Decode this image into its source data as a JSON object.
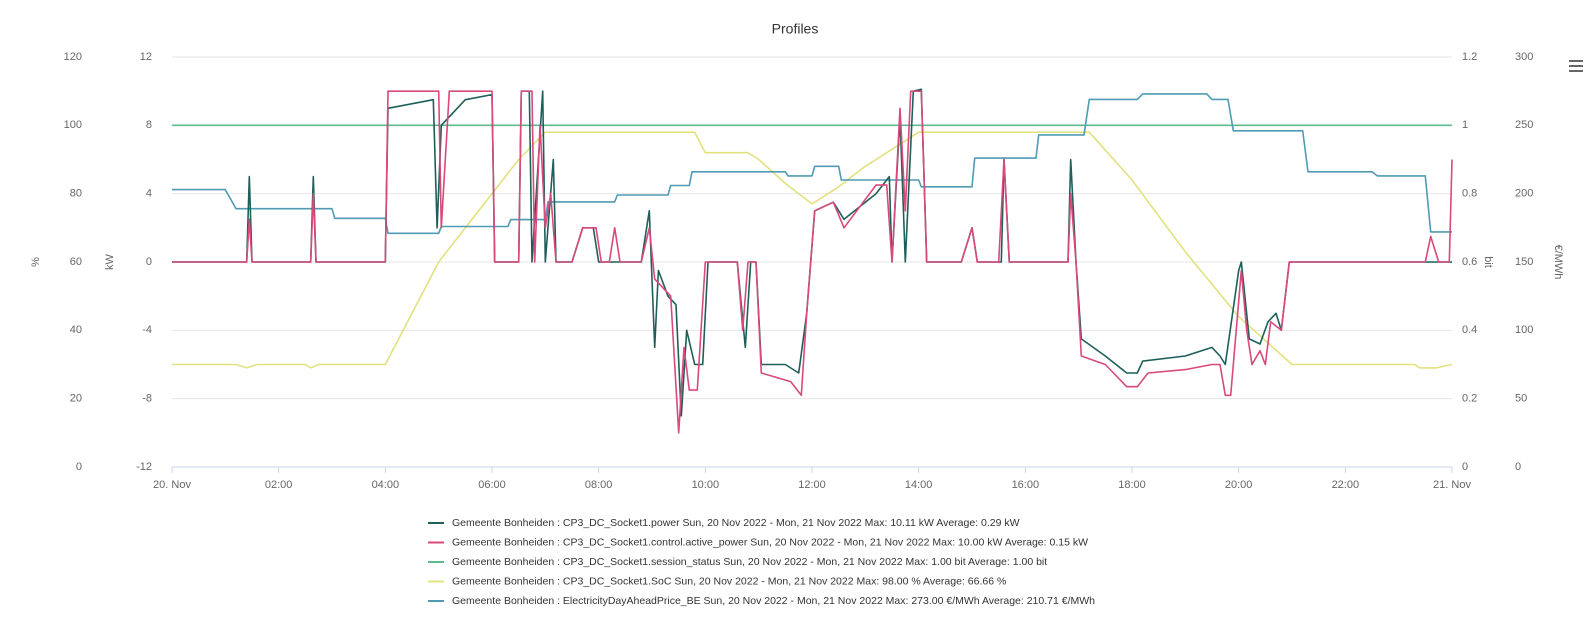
{
  "chart_data": {
    "type": "line",
    "title": "Profiles",
    "xlim": [
      0,
      24
    ],
    "xticks": [
      {
        "value": 0,
        "label": "20. Nov"
      },
      {
        "value": 2,
        "label": "02:00"
      },
      {
        "value": 4,
        "label": "04:00"
      },
      {
        "value": 6,
        "label": "06:00"
      },
      {
        "value": 8,
        "label": "08:00"
      },
      {
        "value": 10,
        "label": "10:00"
      },
      {
        "value": 12,
        "label": "12:00"
      },
      {
        "value": 14,
        "label": "14:00"
      },
      {
        "value": 16,
        "label": "16:00"
      },
      {
        "value": 18,
        "label": "18:00"
      },
      {
        "value": 20,
        "label": "20:00"
      },
      {
        "value": 22,
        "label": "22:00"
      },
      {
        "value": 24,
        "label": "21. Nov"
      }
    ],
    "y_axes": [
      {
        "title": "%",
        "side": "left",
        "lim": [
          0,
          120
        ],
        "ticks": [
          0,
          20,
          40,
          60,
          80,
          100,
          120
        ]
      },
      {
        "title": "kW",
        "side": "left",
        "lim": [
          -12,
          12
        ],
        "ticks": [
          -12,
          -8,
          -4,
          0,
          4,
          8,
          12
        ]
      },
      {
        "title": "bit",
        "side": "right",
        "lim": [
          0,
          1.2
        ],
        "ticks": [
          0,
          0.2,
          0.4,
          0.6,
          0.8,
          1,
          1.2
        ]
      },
      {
        "title": "€/MWh",
        "side": "right",
        "lim": [
          0,
          300
        ],
        "ticks": [
          0,
          50,
          100,
          150,
          200,
          250,
          300
        ]
      }
    ],
    "grid": true,
    "series": [
      {
        "name": "Gemeente Bonheiden : CP3_DC_Socket1.power Sun, 20 Nov 2022 - Mon, 21 Nov 2022 Max: 10.11 kW Average: 0.29 kW",
        "color": "#1f5f5b",
        "axis": 1,
        "x": [
          0,
          1.4,
          1.45,
          1.5,
          2.6,
          2.65,
          2.7,
          4,
          4.05,
          4.9,
          4.97,
          5.05,
          5.5,
          6,
          6.05,
          6.5,
          6.55,
          6.7,
          6.75,
          6.95,
          7,
          7.15,
          7.2,
          7.5,
          7.7,
          7.9,
          8,
          8.8,
          8.95,
          9.05,
          9.12,
          9.3,
          9.45,
          9.55,
          9.65,
          9.8,
          9.95,
          10.05,
          10.6,
          10.75,
          10.85,
          10.95,
          11.05,
          11.5,
          11.75,
          11.9,
          12.05,
          12.4,
          12.6,
          13.2,
          13.45,
          13.5,
          13.65,
          13.75,
          13.9,
          14.05,
          14.15,
          14.8,
          15,
          15.1,
          15.55,
          15.6,
          15.7,
          16.8,
          16.85,
          16.95,
          17.05,
          17.5,
          17.9,
          18.1,
          18.2,
          19,
          19.5,
          19.65,
          19.75,
          20,
          20.05,
          20.2,
          20.4,
          20.55,
          20.7,
          20.8,
          20.95,
          24
        ],
        "values": [
          0,
          0,
          5,
          0,
          0,
          5,
          0,
          0,
          9,
          9.5,
          2,
          8,
          9.5,
          9.8,
          0,
          0,
          10,
          10,
          0,
          10,
          0,
          6,
          0,
          0,
          2,
          2,
          0,
          0,
          3,
          -5,
          -0.5,
          -2,
          -2.5,
          -9,
          -4,
          -6,
          -6,
          0,
          0,
          -5,
          0,
          0,
          -6,
          -6,
          -6.5,
          -3,
          3,
          3.5,
          2.5,
          4,
          5,
          0,
          8.5,
          0,
          10,
          10.11,
          0,
          0,
          2,
          0,
          0,
          6,
          0,
          0,
          6,
          0,
          -4.5,
          -5.5,
          -6.5,
          -6.5,
          -5.8,
          -5.5,
          -5,
          -5.5,
          -6,
          -0.5,
          0,
          -4.5,
          -4.8,
          -3.5,
          -3,
          -4,
          0,
          0
        ]
      },
      {
        "name": "Gemeente Bonheiden : CP3_DC_Socket1.control.active_power Sun, 20 Nov 2022 - Mon, 21 Nov 2022 Max: 10.00 kW Average: 0.15 kW",
        "color": "#d9497c",
        "axis": 1,
        "x": [
          0,
          1.4,
          1.45,
          1.5,
          2.6,
          2.65,
          2.7,
          4,
          4.05,
          5,
          5.05,
          5.2,
          6,
          6.05,
          6.5,
          6.55,
          6.75,
          6.8,
          6.9,
          7,
          7.1,
          7.2,
          7.5,
          7.7,
          7.95,
          8.05,
          8.2,
          8.3,
          8.4,
          8.8,
          8.95,
          9.05,
          9.2,
          9.35,
          9.5,
          9.6,
          9.7,
          9.85,
          10,
          10.6,
          10.7,
          10.8,
          10.95,
          11.05,
          11.6,
          11.8,
          11.9,
          12.05,
          12.4,
          12.6,
          13.2,
          13.4,
          13.5,
          13.65,
          13.75,
          13.85,
          14.05,
          14.15,
          14.8,
          15,
          15.1,
          15.5,
          15.6,
          15.7,
          16.8,
          16.85,
          16.95,
          17.05,
          17.5,
          17.9,
          18.1,
          18.3,
          19,
          19.5,
          19.65,
          19.75,
          19.85,
          20.05,
          20.15,
          20.25,
          20.4,
          20.5,
          20.6,
          20.8,
          20.95,
          23.5,
          23.6,
          23.75,
          23.95,
          24
        ],
        "values": [
          0,
          0,
          2.5,
          0,
          0,
          4,
          0,
          0,
          10,
          10,
          2,
          10,
          10,
          0,
          0,
          10,
          10,
          0,
          8,
          2,
          4,
          0,
          0,
          2,
          2,
          0,
          0,
          2,
          0,
          0,
          2,
          -1,
          -1.5,
          -2,
          -10,
          -5,
          -7.5,
          -7.5,
          0,
          0,
          -4,
          0,
          0,
          -6.5,
          -7,
          -7.8,
          -3,
          3,
          3.5,
          2,
          4.5,
          4.5,
          0,
          9,
          3,
          10,
          10,
          0,
          0,
          2,
          0,
          0,
          6,
          0,
          0,
          4,
          0,
          -5.5,
          -6,
          -7.3,
          -7.3,
          -6.5,
          -6.3,
          -6,
          -6,
          -7.8,
          -7.8,
          -0.5,
          -4,
          -6,
          -5.2,
          -6,
          -3.5,
          -4,
          0,
          0,
          1.5,
          0,
          0,
          6
        ]
      },
      {
        "name": "Gemeente Bonheiden : CP3_DC_Socket1.session_status Sun, 20 Nov 2022 - Mon, 21 Nov 2022 Max: 1.00 bit Average: 1.00 bit",
        "color": "#5fb98f",
        "axis": 2,
        "x": [
          0,
          24
        ],
        "values": [
          1,
          1
        ]
      },
      {
        "name": "Gemeente Bonheiden : CP3_DC_Socket1.SoC Sun, 20 Nov 2022 - Mon, 21 Nov 2022 Max: 98.00 % Average: 66.66 %",
        "color": "#e3e17e",
        "axis": 0,
        "x": [
          0,
          1.2,
          1.4,
          1.6,
          2.5,
          2.6,
          2.75,
          4,
          4.5,
          5,
          5.5,
          6,
          6.5,
          7,
          9.8,
          10,
          10.8,
          11,
          11.5,
          12,
          12.5,
          13,
          13.5,
          14,
          17.2,
          18,
          19,
          20,
          21,
          23.3,
          23.4,
          23.7,
          24
        ],
        "values": [
          30,
          30,
          29,
          30,
          30,
          29,
          30,
          30,
          45,
          60,
          70,
          80,
          90,
          98,
          98,
          92,
          92,
          90,
          83,
          77,
          82,
          88,
          93,
          98,
          98,
          84,
          63,
          44,
          30,
          30,
          29,
          29,
          30
        ]
      },
      {
        "name": "Gemeente Bonheiden : ElectricityDayAheadPrice_BE Sun, 20 Nov 2022 - Mon, 21 Nov 2022 Max: 273.00 €/MWh Average: 210.71 €/MWh",
        "color": "#4e9bb3",
        "axis": 3,
        "x": [
          0,
          1,
          1.2,
          3,
          3.05,
          4,
          4.05,
          5,
          5.05,
          6.3,
          6.35,
          7,
          7.05,
          8.3,
          8.35,
          9.3,
          9.35,
          9.7,
          9.75,
          11.5,
          11.55,
          12,
          12.05,
          12.5,
          12.55,
          14,
          14.05,
          15,
          15.05,
          16.2,
          16.25,
          17.1,
          17.2,
          18.1,
          18.2,
          19.4,
          19.5,
          19.8,
          19.9,
          21.2,
          21.3,
          22.5,
          22.6,
          23.5,
          23.6,
          24
        ],
        "values": [
          203,
          203,
          189,
          189,
          182,
          182,
          171,
          171,
          176,
          176,
          181,
          181,
          194,
          194,
          199,
          199,
          206,
          206,
          216,
          216,
          213,
          213,
          220,
          220,
          210,
          210,
          205,
          205,
          226,
          226,
          243,
          243,
          269,
          269,
          273,
          273,
          269,
          269,
          246,
          246,
          216,
          216,
          213,
          213,
          172,
          172
        ]
      }
    ]
  }
}
